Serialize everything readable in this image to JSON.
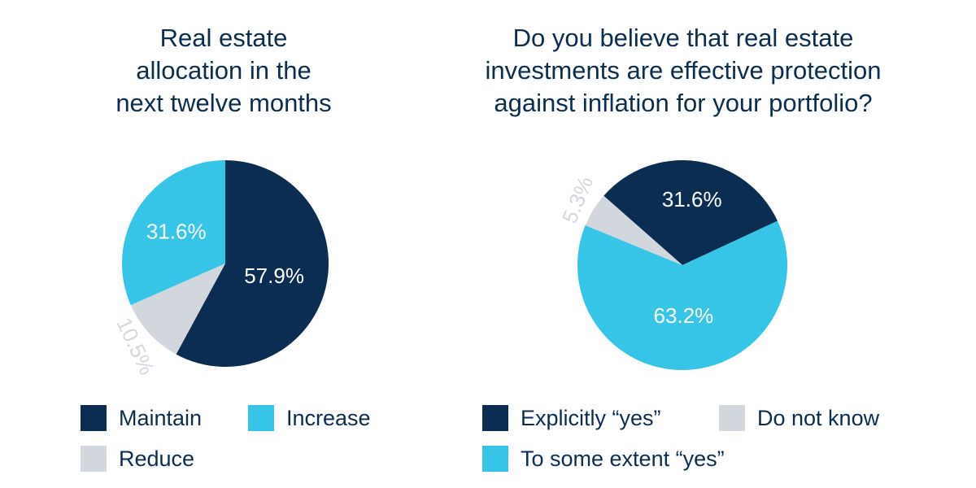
{
  "colors": {
    "dark_navy": "#0b2d52",
    "cyan": "#36c5e6",
    "light_gray": "#d1d7dc",
    "text": "#0b2d52"
  },
  "chart_data": [
    {
      "type": "pie",
      "title_lines": [
        "Real estate",
        "allocation in the",
        "next twelve months"
      ],
      "slices": [
        {
          "label": "Maintain",
          "value": 57.9,
          "display": "57.9%",
          "color": "#0b2d52",
          "label_color": "#ffffff"
        },
        {
          "label": "Reduce",
          "value": 10.5,
          "display": "10.5%",
          "color": "#d1d7dc",
          "label_color": "#d1d7dc"
        },
        {
          "label": "Increase",
          "value": 31.6,
          "display": "31.6%",
          "color": "#36c5e6",
          "label_color": "#ffffff"
        }
      ],
      "legend": [
        "Maintain",
        "Increase",
        "Reduce"
      ]
    },
    {
      "type": "pie",
      "title_lines": [
        "Do you believe that real estate",
        "investments are effective protection",
        "against inflation for your portfolio?"
      ],
      "slices": [
        {
          "label": "Explicitly “yes”",
          "value": 31.6,
          "display": "31.6%",
          "color": "#0b2d52",
          "label_color": "#ffffff"
        },
        {
          "label": "To some extent “yes”",
          "value": 63.2,
          "display": "63.2%",
          "color": "#36c5e6",
          "label_color": "#ffffff"
        },
        {
          "label": "Do not know",
          "value": 5.3,
          "display": "5.3%",
          "color": "#d1d7dc",
          "label_color": "#d1d7dc"
        }
      ],
      "legend": [
        "Explicitly “yes”",
        "Do not know",
        "To some extent “yes”"
      ]
    }
  ]
}
